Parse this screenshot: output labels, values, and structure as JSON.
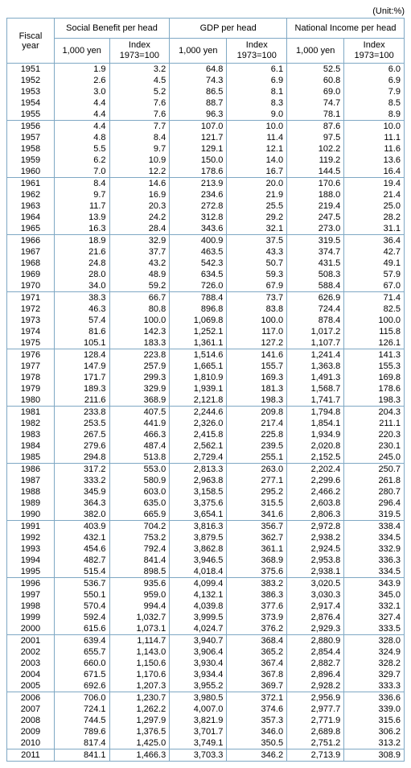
{
  "unit_label": "(Unit:%)",
  "header": {
    "fiscal_year": "Fiscal year",
    "groups": [
      "Social Benefit per head",
      "GDP per head",
      "National Income per head"
    ],
    "sub": [
      "1,000 yen",
      "Index\n1973=100"
    ]
  },
  "colors": {
    "border": "#7fa8c4",
    "text": "#000000",
    "bg": "#ffffff"
  },
  "groups": [
    [
      {
        "y": "1951",
        "a": "1.9",
        "b": "3.2",
        "c": "64.8",
        "d": "6.1",
        "e": "52.5",
        "f": "6.0"
      },
      {
        "y": "1952",
        "a": "2.6",
        "b": "4.5",
        "c": "74.3",
        "d": "6.9",
        "e": "60.8",
        "f": "6.9"
      },
      {
        "y": "1953",
        "a": "3.0",
        "b": "5.2",
        "c": "86.5",
        "d": "8.1",
        "e": "69.0",
        "f": "7.9"
      },
      {
        "y": "1954",
        "a": "4.4",
        "b": "7.6",
        "c": "88.7",
        "d": "8.3",
        "e": "74.7",
        "f": "8.5"
      },
      {
        "y": "1955",
        "a": "4.4",
        "b": "7.6",
        "c": "96.3",
        "d": "9.0",
        "e": "78.1",
        "f": "8.9"
      }
    ],
    [
      {
        "y": "1956",
        "a": "4.4",
        "b": "7.7",
        "c": "107.0",
        "d": "10.0",
        "e": "87.6",
        "f": "10.0"
      },
      {
        "y": "1957",
        "a": "4.8",
        "b": "8.4",
        "c": "121.7",
        "d": "11.4",
        "e": "97.5",
        "f": "11.1"
      },
      {
        "y": "1958",
        "a": "5.5",
        "b": "9.7",
        "c": "129.1",
        "d": "12.1",
        "e": "102.2",
        "f": "11.6"
      },
      {
        "y": "1959",
        "a": "6.2",
        "b": "10.9",
        "c": "150.0",
        "d": "14.0",
        "e": "119.2",
        "f": "13.6"
      },
      {
        "y": "1960",
        "a": "7.0",
        "b": "12.2",
        "c": "178.6",
        "d": "16.7",
        "e": "144.5",
        "f": "16.4"
      }
    ],
    [
      {
        "y": "1961",
        "a": "8.4",
        "b": "14.6",
        "c": "213.9",
        "d": "20.0",
        "e": "170.6",
        "f": "19.4"
      },
      {
        "y": "1962",
        "a": "9.7",
        "b": "16.9",
        "c": "234.6",
        "d": "21.9",
        "e": "188.0",
        "f": "21.4"
      },
      {
        "y": "1963",
        "a": "11.7",
        "b": "20.3",
        "c": "272.8",
        "d": "25.5",
        "e": "219.4",
        "f": "25.0"
      },
      {
        "y": "1964",
        "a": "13.9",
        "b": "24.2",
        "c": "312.8",
        "d": "29.2",
        "e": "247.5",
        "f": "28.2"
      },
      {
        "y": "1965",
        "a": "16.3",
        "b": "28.4",
        "c": "343.6",
        "d": "32.1",
        "e": "273.0",
        "f": "31.1"
      }
    ],
    [
      {
        "y": "1966",
        "a": "18.9",
        "b": "32.9",
        "c": "400.9",
        "d": "37.5",
        "e": "319.5",
        "f": "36.4"
      },
      {
        "y": "1967",
        "a": "21.6",
        "b": "37.7",
        "c": "463.5",
        "d": "43.3",
        "e": "374.7",
        "f": "42.7"
      },
      {
        "y": "1968",
        "a": "24.8",
        "b": "43.2",
        "c": "542.3",
        "d": "50.7",
        "e": "431.5",
        "f": "49.1"
      },
      {
        "y": "1969",
        "a": "28.0",
        "b": "48.9",
        "c": "634.5",
        "d": "59.3",
        "e": "508.3",
        "f": "57.9"
      },
      {
        "y": "1970",
        "a": "34.0",
        "b": "59.2",
        "c": "726.0",
        "d": "67.9",
        "e": "588.4",
        "f": "67.0"
      }
    ],
    [
      {
        "y": "1971",
        "a": "38.3",
        "b": "66.7",
        "c": "788.4",
        "d": "73.7",
        "e": "626.9",
        "f": "71.4"
      },
      {
        "y": "1972",
        "a": "46.3",
        "b": "80.8",
        "c": "896.8",
        "d": "83.8",
        "e": "724.4",
        "f": "82.5"
      },
      {
        "y": "1973",
        "a": "57.4",
        "b": "100.0",
        "c": "1,069.8",
        "d": "100.0",
        "e": "878.4",
        "f": "100.0"
      },
      {
        "y": "1974",
        "a": "81.6",
        "b": "142.3",
        "c": "1,252.1",
        "d": "117.0",
        "e": "1,017.2",
        "f": "115.8"
      },
      {
        "y": "1975",
        "a": "105.1",
        "b": "183.3",
        "c": "1,361.1",
        "d": "127.2",
        "e": "1,107.7",
        "f": "126.1"
      }
    ],
    [
      {
        "y": "1976",
        "a": "128.4",
        "b": "223.8",
        "c": "1,514.6",
        "d": "141.6",
        "e": "1,241.4",
        "f": "141.3"
      },
      {
        "y": "1977",
        "a": "147.9",
        "b": "257.9",
        "c": "1,665.1",
        "d": "155.7",
        "e": "1,363.8",
        "f": "155.3"
      },
      {
        "y": "1978",
        "a": "171.7",
        "b": "299.3",
        "c": "1,810.9",
        "d": "169.3",
        "e": "1,491.3",
        "f": "169.8"
      },
      {
        "y": "1979",
        "a": "189.3",
        "b": "329.9",
        "c": "1,939.1",
        "d": "181.3",
        "e": "1,568.7",
        "f": "178.6"
      },
      {
        "y": "1980",
        "a": "211.6",
        "b": "368.9",
        "c": "2,121.8",
        "d": "198.3",
        "e": "1,741.7",
        "f": "198.3"
      }
    ],
    [
      {
        "y": "1981",
        "a": "233.8",
        "b": "407.5",
        "c": "2,244.6",
        "d": "209.8",
        "e": "1,794.8",
        "f": "204.3"
      },
      {
        "y": "1982",
        "a": "253.5",
        "b": "441.9",
        "c": "2,326.0",
        "d": "217.4",
        "e": "1,854.1",
        "f": "211.1"
      },
      {
        "y": "1983",
        "a": "267.5",
        "b": "466.3",
        "c": "2,415.8",
        "d": "225.8",
        "e": "1,934.9",
        "f": "220.3"
      },
      {
        "y": "1984",
        "a": "279.6",
        "b": "487.4",
        "c": "2,562.1",
        "d": "239.5",
        "e": "2,020.8",
        "f": "230.1"
      },
      {
        "y": "1985",
        "a": "294.8",
        "b": "513.8",
        "c": "2,729.4",
        "d": "255.1",
        "e": "2,152.5",
        "f": "245.0"
      }
    ],
    [
      {
        "y": "1986",
        "a": "317.2",
        "b": "553.0",
        "c": "2,813.3",
        "d": "263.0",
        "e": "2,202.4",
        "f": "250.7"
      },
      {
        "y": "1987",
        "a": "333.2",
        "b": "580.9",
        "c": "2,963.8",
        "d": "277.1",
        "e": "2,299.6",
        "f": "261.8"
      },
      {
        "y": "1988",
        "a": "345.9",
        "b": "603.0",
        "c": "3,158.5",
        "d": "295.2",
        "e": "2,466.2",
        "f": "280.7"
      },
      {
        "y": "1989",
        "a": "364.3",
        "b": "635.0",
        "c": "3,375.6",
        "d": "315.5",
        "e": "2,603.8",
        "f": "296.4"
      },
      {
        "y": "1990",
        "a": "382.0",
        "b": "665.9",
        "c": "3,654.1",
        "d": "341.6",
        "e": "2,806.3",
        "f": "319.5"
      }
    ],
    [
      {
        "y": "1991",
        "a": "403.9",
        "b": "704.2",
        "c": "3,816.3",
        "d": "356.7",
        "e": "2,972.8",
        "f": "338.4"
      },
      {
        "y": "1992",
        "a": "432.1",
        "b": "753.2",
        "c": "3,879.5",
        "d": "362.7",
        "e": "2,938.2",
        "f": "334.5"
      },
      {
        "y": "1993",
        "a": "454.6",
        "b": "792.4",
        "c": "3,862.8",
        "d": "361.1",
        "e": "2,924.5",
        "f": "332.9"
      },
      {
        "y": "1994",
        "a": "482.7",
        "b": "841.4",
        "c": "3,946.5",
        "d": "368.9",
        "e": "2,953.8",
        "f": "336.3"
      },
      {
        "y": "1995",
        "a": "515.4",
        "b": "898.5",
        "c": "4,018.4",
        "d": "375.6",
        "e": "2,938.1",
        "f": "334.5"
      }
    ],
    [
      {
        "y": "1996",
        "a": "536.7",
        "b": "935.6",
        "c": "4,099.4",
        "d": "383.2",
        "e": "3,020.5",
        "f": "343.9"
      },
      {
        "y": "1997",
        "a": "550.1",
        "b": "959.0",
        "c": "4,132.1",
        "d": "386.3",
        "e": "3,030.3",
        "f": "345.0"
      },
      {
        "y": "1998",
        "a": "570.4",
        "b": "994.4",
        "c": "4,039.8",
        "d": "377.6",
        "e": "2,917.4",
        "f": "332.1"
      },
      {
        "y": "1999",
        "a": "592.4",
        "b": "1,032.7",
        "c": "3,999.5",
        "d": "373.9",
        "e": "2,876.4",
        "f": "327.4"
      },
      {
        "y": "2000",
        "a": "615.6",
        "b": "1,073.1",
        "c": "4,024.7",
        "d": "376.2",
        "e": "2,929.3",
        "f": "333.5"
      }
    ],
    [
      {
        "y": "2001",
        "a": "639.4",
        "b": "1,114.7",
        "c": "3,940.7",
        "d": "368.4",
        "e": "2,880.9",
        "f": "328.0"
      },
      {
        "y": "2002",
        "a": "655.7",
        "b": "1,143.0",
        "c": "3,906.4",
        "d": "365.2",
        "e": "2,854.4",
        "f": "324.9"
      },
      {
        "y": "2003",
        "a": "660.0",
        "b": "1,150.6",
        "c": "3,930.4",
        "d": "367.4",
        "e": "2,882.7",
        "f": "328.2"
      },
      {
        "y": "2004",
        "a": "671.5",
        "b": "1,170.6",
        "c": "3,934.4",
        "d": "367.8",
        "e": "2,896.4",
        "f": "329.7"
      },
      {
        "y": "2005",
        "a": "692.6",
        "b": "1,207.3",
        "c": "3,955.2",
        "d": "369.7",
        "e": "2,928.2",
        "f": "333.3"
      }
    ],
    [
      {
        "y": "2006",
        "a": "706.0",
        "b": "1,230.7",
        "c": "3,980.5",
        "d": "372.1",
        "e": "2,956.9",
        "f": "336.6"
      },
      {
        "y": "2007",
        "a": "724.1",
        "b": "1,262.2",
        "c": "4,007.0",
        "d": "374.6",
        "e": "2,977.7",
        "f": "339.0"
      },
      {
        "y": "2008",
        "a": "744.5",
        "b": "1,297.9",
        "c": "3,821.9",
        "d": "357.3",
        "e": "2,771.9",
        "f": "315.6"
      },
      {
        "y": "2009",
        "a": "789.6",
        "b": "1,376.5",
        "c": "3,701.7",
        "d": "346.0",
        "e": "2,689.8",
        "f": "306.2"
      },
      {
        "y": "2010",
        "a": "817.4",
        "b": "1,425.0",
        "c": "3,749.1",
        "d": "350.5",
        "e": "2,751.2",
        "f": "313.2"
      }
    ],
    [
      {
        "y": "2011",
        "a": "841.1",
        "b": "1,466.3",
        "c": "3,703.3",
        "d": "346.2",
        "e": "2,713.9",
        "f": "308.9"
      }
    ]
  ]
}
